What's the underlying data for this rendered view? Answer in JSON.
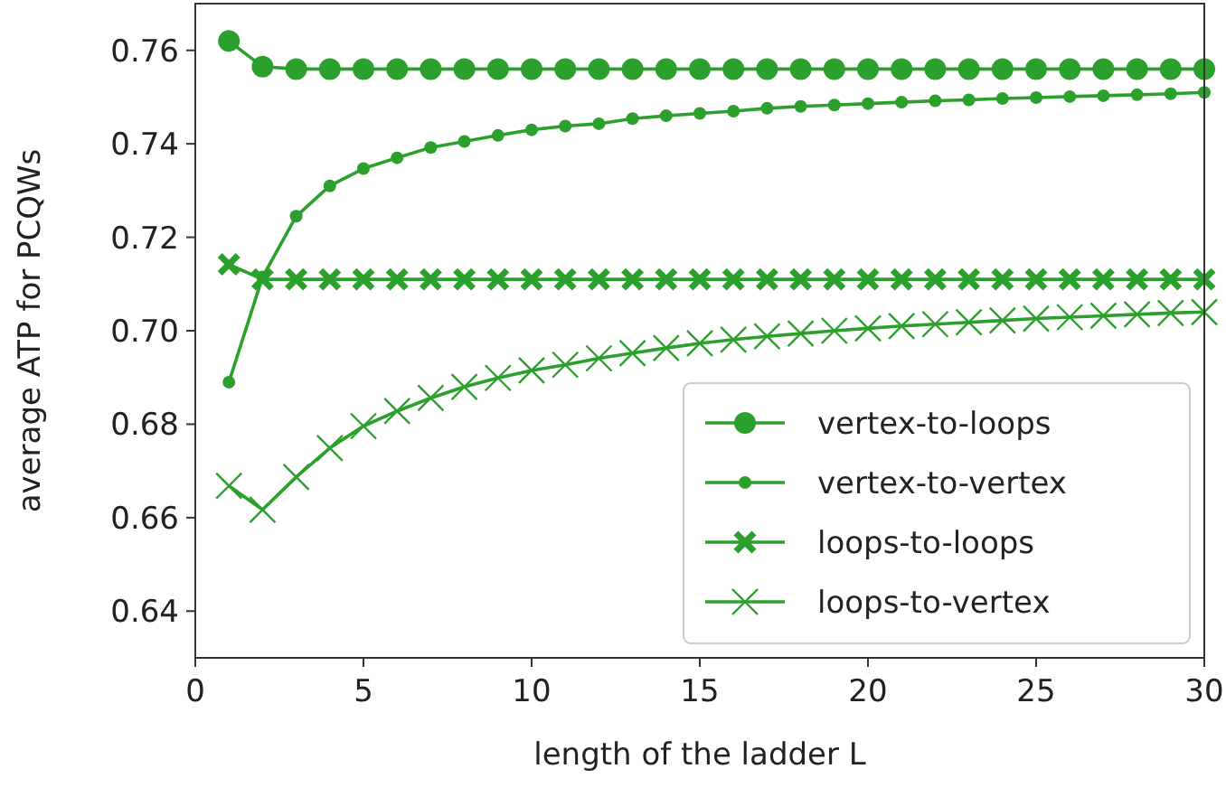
{
  "chart_data": {
    "type": "line",
    "xlabel": "length of the ladder L",
    "ylabel": "average ATP for PCQWs",
    "x": [
      1,
      2,
      3,
      4,
      5,
      6,
      7,
      8,
      9,
      10,
      11,
      12,
      13,
      14,
      15,
      16,
      17,
      18,
      19,
      20,
      21,
      22,
      23,
      24,
      25,
      26,
      27,
      28,
      29,
      30
    ],
    "series": [
      {
        "name": "vertex-to-loops",
        "color": "#2ca02c",
        "marker": "circle",
        "values": [
          0.762,
          0.7565,
          0.756,
          0.756,
          0.756,
          0.756,
          0.756,
          0.756,
          0.756,
          0.756,
          0.756,
          0.756,
          0.756,
          0.756,
          0.756,
          0.756,
          0.756,
          0.756,
          0.756,
          0.756,
          0.756,
          0.756,
          0.756,
          0.756,
          0.756,
          0.756,
          0.756,
          0.756,
          0.756,
          0.756
        ]
      },
      {
        "name": "vertex-to-vertex",
        "color": "#2ca02c",
        "marker": "circle",
        "values": [
          0.689,
          0.7115,
          0.7245,
          0.731,
          0.7347,
          0.737,
          0.7392,
          0.7405,
          0.7418,
          0.743,
          0.7438,
          0.7443,
          0.7454,
          0.746,
          0.7465,
          0.747,
          0.7476,
          0.748,
          0.7483,
          0.7486,
          0.7489,
          0.7492,
          0.7494,
          0.7497,
          0.7499,
          0.7501,
          0.7503,
          0.7505,
          0.7507,
          0.751
        ]
      },
      {
        "name": "loops-to-loops",
        "color": "#2ca02c",
        "marker": "cross",
        "values": [
          0.7142,
          0.711,
          0.711,
          0.711,
          0.711,
          0.711,
          0.711,
          0.711,
          0.711,
          0.711,
          0.711,
          0.711,
          0.711,
          0.711,
          0.711,
          0.711,
          0.711,
          0.711,
          0.711,
          0.711,
          0.711,
          0.711,
          0.711,
          0.711,
          0.711,
          0.711,
          0.711,
          0.711,
          0.711,
          0.711
        ]
      },
      {
        "name": "loops-to-vertex",
        "color": "#2ca02c",
        "marker": "cross",
        "values": [
          0.6668,
          0.6617,
          0.6687,
          0.6749,
          0.6796,
          0.6828,
          0.6856,
          0.688,
          0.6899,
          0.6915,
          0.6927,
          0.6941,
          0.6952,
          0.6963,
          0.6973,
          0.6981,
          0.6988,
          0.6994,
          0.7,
          0.7005,
          0.701,
          0.7014,
          0.7018,
          0.7022,
          0.7026,
          0.7029,
          0.7032,
          0.7035,
          0.7038,
          0.704
        ]
      }
    ],
    "xlim": [
      0,
      30
    ],
    "xticks": [
      0,
      5,
      10,
      15,
      20,
      25,
      30
    ],
    "ylim": [
      0.63,
      0.77
    ],
    "yticks": [
      {
        "value": 0.64,
        "label": "0.64"
      },
      {
        "value": 0.66,
        "label": "0.66"
      },
      {
        "value": 0.68,
        "label": "0.68"
      },
      {
        "value": 0.7,
        "label": "0.70"
      },
      {
        "value": 0.72,
        "label": "0.72"
      },
      {
        "value": 0.74,
        "label": "0.74"
      },
      {
        "value": 0.76,
        "label": "0.76"
      }
    ],
    "legend": "bottom right",
    "grid": false,
    "line_style": "solid"
  }
}
